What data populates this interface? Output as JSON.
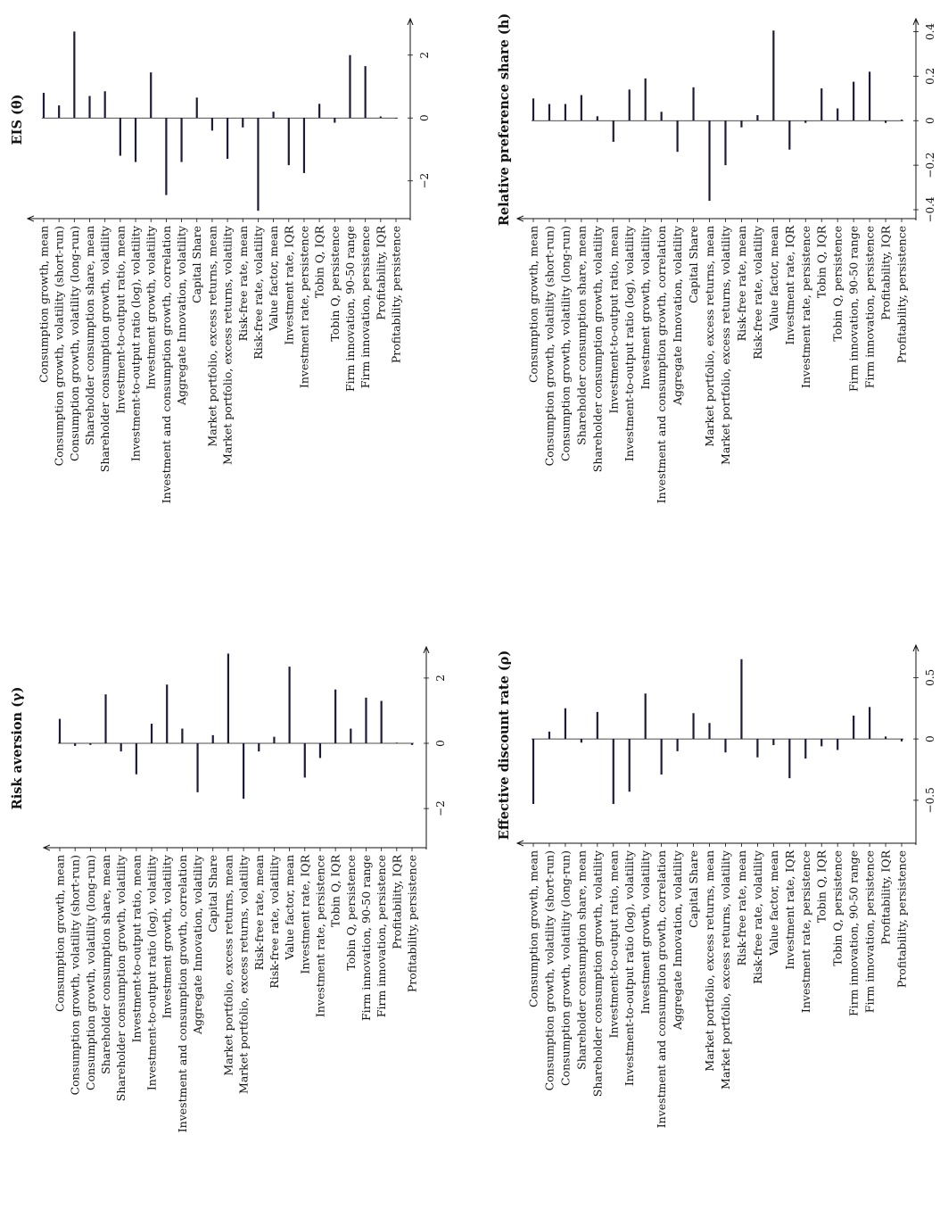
{
  "figure": {
    "categories": [
      "Consumption growth, mean",
      "Consumption growth, volatility (short-run)",
      "Consumption growth, volatility (long-run)",
      "Shareholder consumption share, mean",
      "Shareholder consumption growth, volatility",
      "Investment-to-output ratio, mean",
      "Investment-to-output ratio (log), volatility",
      "Investment growth, volatility",
      "Investment and consumption growth, correlation",
      "Aggregate Innovation, volatility",
      "Capital Share",
      "Market portfolio, excess returns, mean",
      "Market portfolio, excess returns, volatility",
      "Risk-free rate, mean",
      "Risk-free rate, volatility",
      "Value factor, mean",
      "Investment rate, IQR",
      "Investment rate, persistence",
      "Tobin Q, IQR",
      "Tobin Q, persistence",
      "Firm innovation, 90-50 range",
      "Firm innovation, persistence",
      "Profitability, IQR",
      "Profitability, persistence"
    ],
    "bar_color": "#1c1c3a"
  },
  "chart_data": [
    {
      "type": "bar",
      "orientation": "horizontal",
      "title": "Risk aversion (γ)",
      "categories_ref": "figure.categories",
      "xlim": [
        -3.2,
        2.9
      ],
      "ticks": [
        -2,
        0,
        2
      ],
      "tick_labels": [
        "−2",
        "0",
        "2"
      ],
      "values": [
        0.75,
        -0.08,
        -0.05,
        1.5,
        -0.25,
        -0.95,
        0.6,
        1.8,
        0.45,
        -1.5,
        0.25,
        2.75,
        -1.7,
        -0.25,
        0.2,
        2.35,
        -1.05,
        -0.45,
        1.65,
        0.45,
        1.4,
        1.3,
        0.02,
        -0.05
      ]
    },
    {
      "type": "bar",
      "orientation": "horizontal",
      "title": "EIS (θ)",
      "categories_ref": "figure.categories",
      "xlim": [
        -3.2,
        3.1
      ],
      "ticks": [
        -2,
        0,
        2
      ],
      "tick_labels": [
        "−2",
        "0",
        "2"
      ],
      "values": [
        0.8,
        0.4,
        2.75,
        0.7,
        0.85,
        -1.2,
        -1.4,
        1.45,
        -2.45,
        -1.4,
        0.65,
        -0.4,
        -1.3,
        -0.3,
        -2.95,
        0.2,
        -1.5,
        -1.75,
        0.45,
        -0.15,
        2.0,
        1.65,
        0.05,
        0.0
      ]
    },
    {
      "type": "bar",
      "orientation": "horizontal",
      "title": "Effective discount rate (ρ)",
      "categories_ref": "figure.categories",
      "xlim": [
        -0.85,
        0.75
      ],
      "ticks": [
        -0.5,
        0,
        0.5
      ],
      "tick_labels": [
        "−0.5",
        "0",
        "0.5"
      ],
      "values": [
        -0.53,
        0.06,
        0.25,
        -0.03,
        0.22,
        -0.53,
        -0.43,
        0.37,
        -0.29,
        -0.1,
        0.21,
        0.13,
        -0.11,
        0.65,
        -0.15,
        -0.05,
        -0.32,
        -0.16,
        -0.06,
        -0.09,
        0.19,
        0.26,
        0.02,
        -0.02
      ]
    },
    {
      "type": "bar",
      "orientation": "horizontal",
      "title": "Relative preference share (h)",
      "categories_ref": "figure.categories",
      "xlim": [
        -0.44,
        0.45
      ],
      "ticks": [
        -0.4,
        -0.2,
        0,
        0.2,
        0.4
      ],
      "tick_labels": [
        "−0.4",
        "−0.2",
        "0",
        "0.2",
        "0.4"
      ],
      "values": [
        0.1,
        0.075,
        0.075,
        0.115,
        0.02,
        -0.095,
        0.14,
        0.19,
        0.04,
        -0.14,
        0.15,
        -0.36,
        -0.2,
        -0.03,
        0.025,
        0.405,
        -0.13,
        -0.01,
        0.145,
        0.055,
        0.175,
        0.22,
        -0.01,
        0.005
      ]
    }
  ]
}
